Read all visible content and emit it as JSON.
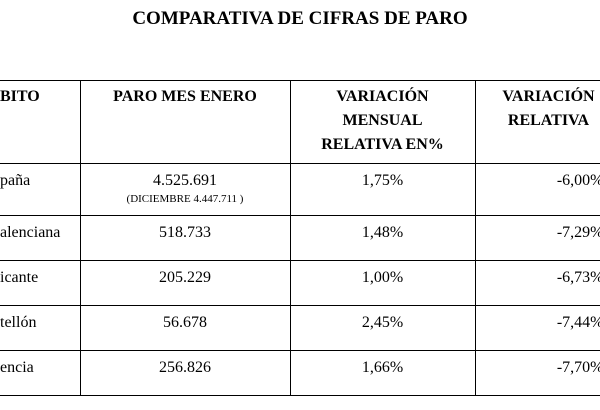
{
  "title": "COMPARATIVA DE CIFRAS DE PARO",
  "table": {
    "header": [
      [
        "BITO"
      ],
      [
        "PARO MES  ENERO"
      ],
      [
        "VARIACIÓN",
        "MENSUAL",
        "RELATIVA EN%"
      ],
      [
        "VARIACIÓN",
        "RELATIVA"
      ]
    ],
    "rows": [
      {
        "ambito": "paña",
        "paro": "4.525.691",
        "nota": "(DICIEMBRE 4.447.711 )",
        "mensual": "1,75%",
        "relativa": "-6,00%"
      },
      {
        "ambito": "alenciana",
        "paro": "518.733",
        "mensual": "1,48%",
        "relativa": "-7,29%"
      },
      {
        "ambito": "icante",
        "paro": "205.229",
        "mensual": "1,00%",
        "relativa": "-6,73%"
      },
      {
        "ambito": "tellón",
        "paro": "56.678",
        "mensual": "2,45%",
        "relativa": "-7,44%"
      },
      {
        "ambito": "encia",
        "paro": "256.826",
        "mensual": "1,66%",
        "relativa": "-7,70%"
      }
    ]
  }
}
